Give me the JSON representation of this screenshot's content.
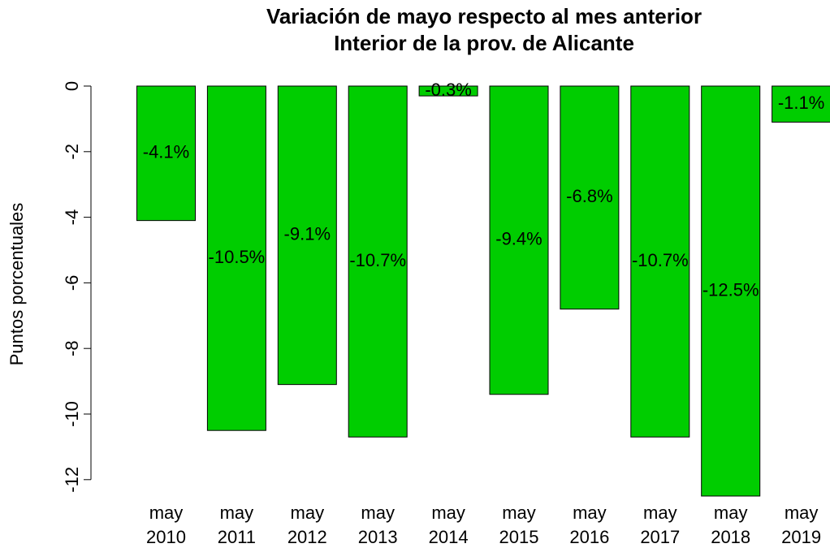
{
  "chart_data": {
    "type": "bar",
    "title": "Variación de mayo respecto al mes anterior",
    "subtitle": "Interior de la prov. de Alicante",
    "y_label": "Puntos porcentuales",
    "categories": [
      "may\n2010",
      "may\n2011",
      "may\n2012",
      "may\n2013",
      "may\n2014",
      "may\n2015",
      "may\n2016",
      "may\n2017",
      "may\n2018",
      "may\n2019"
    ],
    "values": [
      -4.1,
      -10.5,
      -9.1,
      -10.7,
      -0.3,
      -9.4,
      -6.8,
      -10.7,
      -12.5,
      -1.1
    ],
    "value_labels": [
      "-4.1%",
      "-10.5%",
      "-9.1%",
      "-10.7%",
      "-0.3%",
      "-9.4%",
      "-6.8%",
      "-10.7%",
      "-12.5%",
      "-1.1%"
    ],
    "color": "#00cd00",
    "ylim": [
      -12.5,
      0
    ],
    "yticks": [
      0,
      -2,
      -4,
      -6,
      -8,
      -10,
      -12
    ]
  }
}
